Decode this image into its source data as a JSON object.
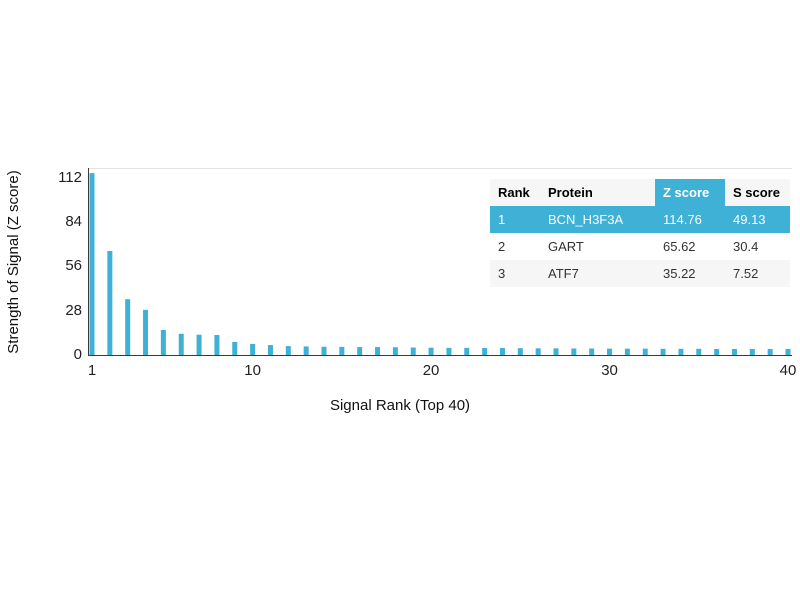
{
  "colors": {
    "accent": "#3fb1d6",
    "axis": "#3a3a3a",
    "grid_light": "#e2e2e2"
  },
  "chart_data": {
    "type": "bar",
    "title": "",
    "xlabel": "Signal Rank (Top 40)",
    "ylabel": "Strength of Signal (Z score)",
    "x": [
      1,
      2,
      3,
      4,
      5,
      6,
      7,
      8,
      9,
      10,
      11,
      12,
      13,
      14,
      15,
      16,
      17,
      18,
      19,
      20,
      21,
      22,
      23,
      24,
      25,
      26,
      27,
      28,
      29,
      30,
      31,
      32,
      33,
      34,
      35,
      36,
      37,
      38,
      39,
      40
    ],
    "values": [
      114.76,
      65.62,
      35.22,
      28.5,
      15.8,
      13.4,
      12.8,
      12.6,
      8.2,
      7.0,
      6.3,
      5.6,
      5.4,
      5.2,
      5.1,
      5.0,
      5.0,
      4.9,
      4.7,
      4.6,
      4.5,
      4.5,
      4.4,
      4.4,
      4.3,
      4.2,
      4.2,
      4.1,
      4.1,
      4.0,
      4.0,
      4.0,
      3.9,
      3.9,
      3.9,
      3.8,
      3.8,
      3.8,
      3.8,
      3.8
    ],
    "yticks": [
      0,
      28,
      56,
      84,
      112
    ],
    "xticks": [
      1,
      10,
      20,
      30,
      40
    ],
    "ylim": [
      0,
      118
    ],
    "grid": "top-border-only",
    "legend": "none",
    "bar_color": "#3fb1d6"
  },
  "table": {
    "headers": [
      "Rank",
      "Protein",
      "Z score",
      "S score"
    ],
    "rows": [
      {
        "rank": "1",
        "protein": "BCN_H3F3A",
        "z": "114.76",
        "s": "49.13"
      },
      {
        "rank": "2",
        "protein": "GART",
        "z": "65.62",
        "s": "30.4"
      },
      {
        "rank": "3",
        "protein": "ATF7",
        "z": "35.22",
        "s": "7.52"
      }
    ]
  }
}
